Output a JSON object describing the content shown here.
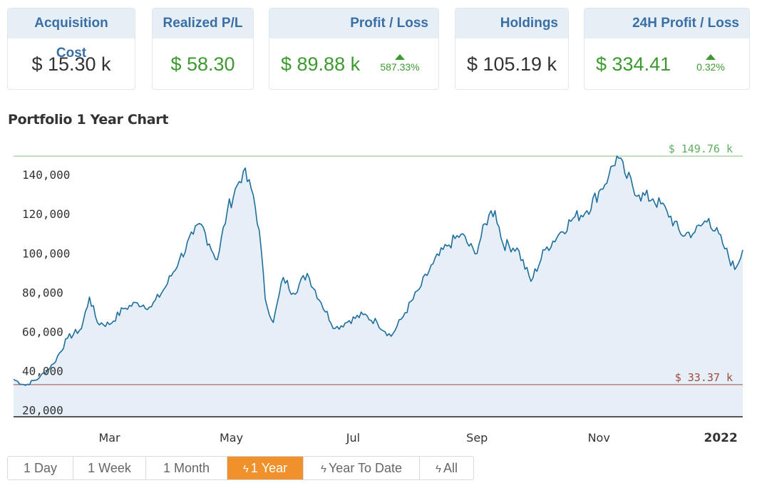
{
  "stats": {
    "acquisition": {
      "label": "Acquisition Cost",
      "value": "$ 15.30 k"
    },
    "realized": {
      "label": "Realized P/L",
      "value": "$ 58.30"
    },
    "profit": {
      "label": "Profit / Loss",
      "value": "$ 89.88 k",
      "change": "587.33%"
    },
    "holdings": {
      "label": "Holdings",
      "value": "$ 105.19 k"
    },
    "profit24h": {
      "label": "24H Profit / Loss",
      "value": "$ 334.41",
      "change": "0.32%"
    }
  },
  "colors": {
    "positive": "#3c9a2e",
    "header_text": "#3a6fa6",
    "line": "#1f6e9c",
    "fill": "#e6eef7",
    "max_line": "#7fc47f",
    "min_line": "#b06a6a",
    "active_button": "#f0912b"
  },
  "chart_section": {
    "title": "Portfolio 1 Year Chart"
  },
  "chart_data": {
    "type": "area",
    "title": "Portfolio 1 Year Chart",
    "xlabel": "",
    "ylabel": "",
    "x_ticks": [
      "Mar",
      "May",
      "Jul",
      "Sep",
      "Nov",
      "2022"
    ],
    "y_ticks": [
      "20,000",
      "40,000",
      "60,000",
      "80,000",
      "100,000",
      "120,000",
      "140,000"
    ],
    "ylim": [
      17000,
      152000
    ],
    "xlim": [
      "2021-01-12",
      "2022-01-12"
    ],
    "grid": false,
    "max_marker": {
      "label": "$ 149.76 k",
      "value": 149760
    },
    "min_marker": {
      "label": "$ 33.37 k",
      "value": 33370
    },
    "series": [
      {
        "x": [
          "2021-01-12",
          "2021-01-18",
          "2021-01-25",
          "2021-02-01",
          "2021-02-08",
          "2021-02-15",
          "2021-02-19",
          "2021-02-23",
          "2021-03-01",
          "2021-03-08",
          "2021-03-15",
          "2021-03-22",
          "2021-03-29",
          "2021-04-05",
          "2021-04-12",
          "2021-04-16",
          "2021-04-20",
          "2021-04-24",
          "2021-04-29",
          "2021-05-04",
          "2021-05-07",
          "2021-05-12",
          "2021-05-15",
          "2021-05-18",
          "2021-05-22",
          "2021-05-27",
          "2021-06-01",
          "2021-06-08",
          "2021-06-15",
          "2021-06-22",
          "2021-06-29",
          "2021-07-06",
          "2021-07-13",
          "2021-07-20",
          "2021-07-27",
          "2021-08-03",
          "2021-08-10",
          "2021-08-17",
          "2021-08-24",
          "2021-08-31",
          "2021-09-07",
          "2021-09-10",
          "2021-09-14",
          "2021-09-21",
          "2021-09-28",
          "2021-10-05",
          "2021-10-12",
          "2021-10-19",
          "2021-10-26",
          "2021-11-02",
          "2021-11-06",
          "2021-11-10",
          "2021-11-14",
          "2021-11-21",
          "2021-11-28",
          "2021-12-05",
          "2021-12-12",
          "2021-12-19",
          "2021-12-26",
          "2022-01-02",
          "2022-01-08",
          "2022-01-12"
        ],
        "y": [
          36000,
          33000,
          37000,
          44000,
          57000,
          62000,
          78000,
          65000,
          64000,
          72000,
          75000,
          73000,
          83000,
          97000,
          110000,
          115000,
          105000,
          97000,
          122000,
          135000,
          142000,
          130000,
          112000,
          77000,
          65000,
          88000,
          80000,
          90000,
          75000,
          62000,
          66000,
          69000,
          65000,
          58000,
          70000,
          82000,
          95000,
          104000,
          110000,
          100000,
          120000,
          122000,
          105000,
          103000,
          86000,
          102000,
          110000,
          118000,
          122000,
          133000,
          140000,
          149760,
          141000,
          130000,
          128000,
          122000,
          110000,
          111000,
          118000,
          105000,
          92000,
          102000
        ]
      }
    ]
  },
  "range_buttons": [
    {
      "label": "1 Day",
      "icon": "",
      "active": false
    },
    {
      "label": "1 Week",
      "icon": "",
      "active": false
    },
    {
      "label": "1 Month",
      "icon": "",
      "active": false
    },
    {
      "label": "1 Year",
      "icon": "bolt-icon",
      "active": true
    },
    {
      "label": "Year To Date",
      "icon": "bolt-icon",
      "active": false
    },
    {
      "label": "All",
      "icon": "bolt-icon",
      "active": false
    }
  ]
}
